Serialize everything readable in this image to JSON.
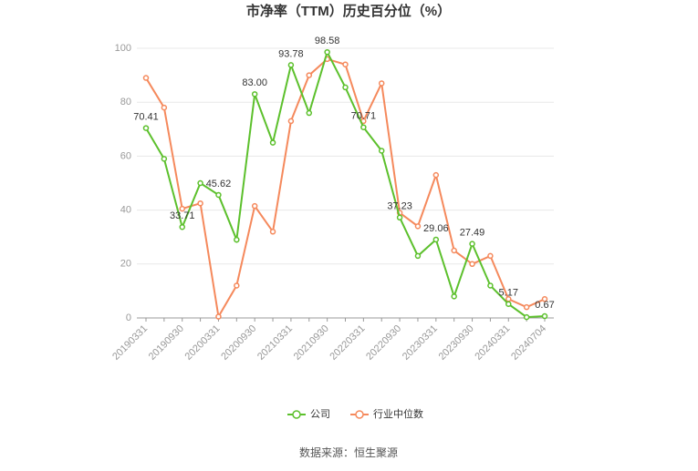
{
  "chart_data": {
    "type": "line",
    "title": "市净率（TTM）历史百分位（%）",
    "categories": [
      "20190331",
      null,
      "20190930",
      null,
      "20200331",
      null,
      "20200930",
      null,
      "20210331",
      null,
      "20210930",
      null,
      "20220331",
      null,
      "20220930",
      null,
      "20230331",
      null,
      "20230930",
      null,
      "20240331",
      null,
      "20240704"
    ],
    "series": [
      {
        "name": "公司",
        "color": "#5cc02c",
        "values": [
          70.41,
          59,
          33.71,
          50,
          45.62,
          29,
          83.0,
          65,
          93.78,
          76,
          98.58,
          85.5,
          70.71,
          62,
          37.23,
          23,
          29.06,
          8,
          27.49,
          12,
          5.17,
          0.3,
          0.67
        ],
        "value_labels": [
          "70.41",
          null,
          "33.71",
          null,
          "45.62",
          null,
          "83.00",
          null,
          "93.78",
          null,
          "98.58",
          null,
          "70.71",
          null,
          "37.23",
          null,
          "29.06",
          null,
          "27.49",
          null,
          "5.17",
          null,
          "0.67"
        ]
      },
      {
        "name": "行业中位数",
        "color": "#f5895c",
        "values": [
          89,
          78,
          40.5,
          42.5,
          0.5,
          12,
          41.5,
          32,
          73,
          90,
          96,
          94,
          73,
          87,
          39,
          34,
          53,
          25,
          20,
          23,
          7,
          4,
          7
        ]
      }
    ],
    "ylim": [
      0,
      100
    ],
    "yticks": [
      0,
      20,
      40,
      60,
      80,
      100
    ],
    "grid": true,
    "legend": "bottom",
    "source": "数据来源：恒生聚源"
  }
}
